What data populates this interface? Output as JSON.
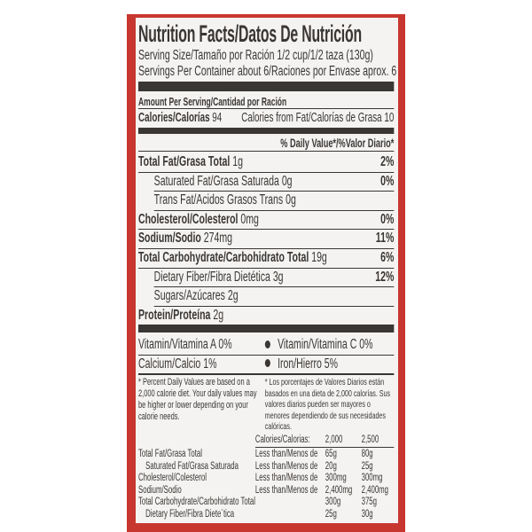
{
  "title": "Nutrition Facts/Datos De Nutrición",
  "serving_size": "Serving Size/Tamaño por Ración 1/2 cup/1/2 taza (130g)",
  "servings_per_container": "Servings Per Container about 6/Raciones por Envase aprox. 6",
  "amount_per_serving": "Amount Per Serving/Cantidad por Ración",
  "calories": {
    "label": "Calories/Calorías",
    "value": "94",
    "from_fat": "Calories from Fat/Calorías de Grasa 10"
  },
  "dv_header": "% Daily Value*/%Valor Diario*",
  "nutrients": [
    {
      "label": "Total Fat/Grasa Total",
      "amount": "1g",
      "dv": "2%",
      "bold": true,
      "indent": false
    },
    {
      "label": "Saturated Fat/Grasa Saturada",
      "amount": "0g",
      "dv": "0%",
      "bold": false,
      "indent": true
    },
    {
      "label": "Trans Fat/Acidos Grasos Trans",
      "amount": "0g",
      "dv": "",
      "bold": false,
      "indent": true
    },
    {
      "label": "Cholesterol/Colesterol",
      "amount": "0mg",
      "dv": "0%",
      "bold": true,
      "indent": false
    },
    {
      "label": "Sodium/Sodio",
      "amount": "274mg",
      "dv": "11%",
      "bold": true,
      "indent": false
    },
    {
      "label": "Total Carbohydrate/Carbohidrato Total",
      "amount": "19g",
      "dv": "6%",
      "bold": true,
      "indent": false
    },
    {
      "label": "Dietary Fiber/Fibra Dietética",
      "amount": "3g",
      "dv": "12%",
      "bold": false,
      "indent": true
    },
    {
      "label": "Sugars/Azúcares",
      "amount": "2g",
      "dv": "",
      "bold": false,
      "indent": true
    },
    {
      "label": "Protein/Proteína",
      "amount": "2g",
      "dv": "",
      "bold": true,
      "indent": false
    }
  ],
  "vitamins": [
    {
      "left": "Vitamin/Vitamina A 0%",
      "right": "Vitamin/Vitamina C 0%"
    },
    {
      "left": "Calcium/Calcio 1%",
      "right": "Iron/Hierro 5%"
    }
  ],
  "footnote_en": "* Percent Daily Values are based on a 2,000 calorie diet. Your daily values may be higher or lower depending on your calorie needs.",
  "footnote_es": "* Los porcentajes de Valores Diarios están basados en una dieta de 2,000 calorías. Sus valores diarios pueden ser mayores o menores dependiendo de sus necesidades calóricas.",
  "dv_table": {
    "header": [
      "",
      "",
      "Calories/Calorias:",
      "2,000",
      "2,500"
    ],
    "rows": [
      [
        "Total Fat/Grasa Total",
        "Less than/Menos de",
        "65g",
        "80g"
      ],
      [
        "Saturated Fat/Grasa Saturada",
        "Less than/Menos de",
        "20g",
        "25g"
      ],
      [
        "Cholesterol/Colesterol",
        "Less than/Menos de",
        "300mg",
        "300mg"
      ],
      [
        "Sodium/Sodio",
        "Less than/Menos de",
        "2,400mg",
        "2,400mg"
      ],
      [
        "Total Carbohydrate/Carbohidrato Total",
        "",
        "300g",
        "375g"
      ],
      [
        "Dietary Fiber/Fibra Diete´tica",
        "",
        "25g",
        "30g"
      ]
    ]
  },
  "colors": {
    "border": "#c8372f",
    "ink": "#3a3634",
    "paper": "#f4f3f1"
  }
}
